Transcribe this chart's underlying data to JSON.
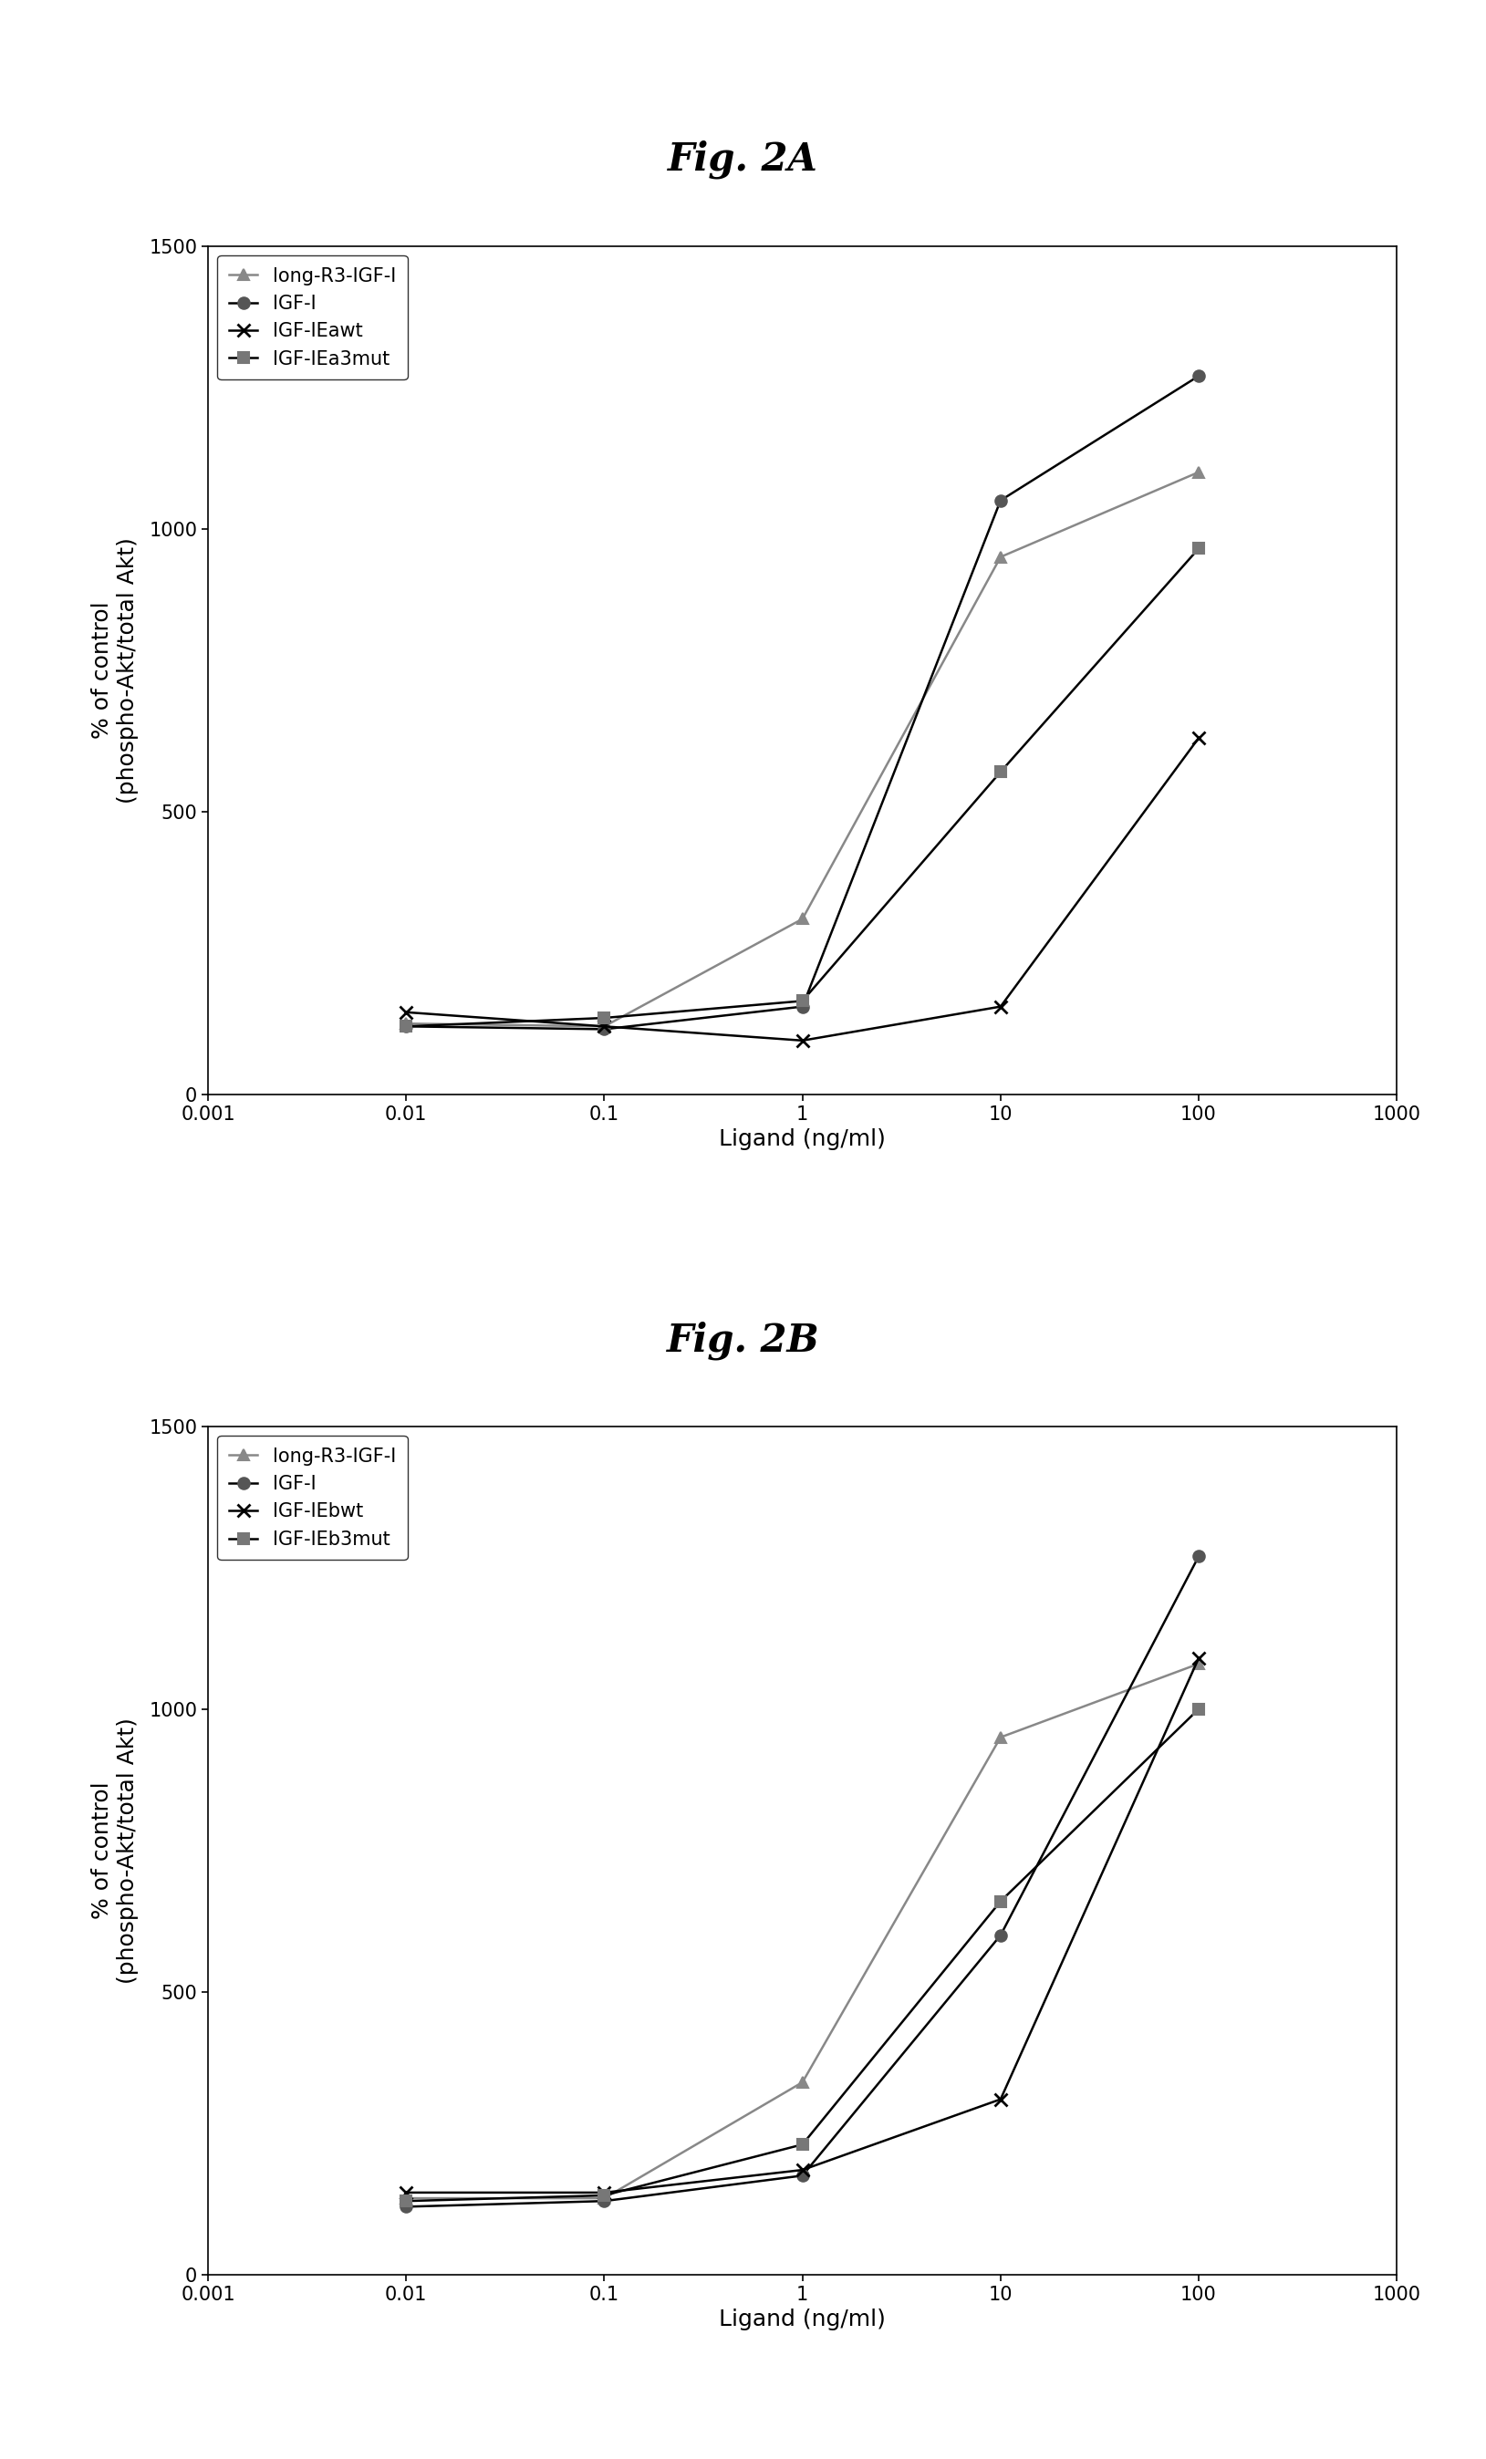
{
  "fig2A": {
    "title": "Fig. 2A",
    "series": [
      {
        "label": "long-R3-IGF-I",
        "x": [
          0.01,
          0.1,
          1,
          10,
          100
        ],
        "y": [
          125,
          120,
          310,
          950,
          1100
        ],
        "marker": "^",
        "color": "#888888",
        "linecolor": "#888888",
        "markersize": 9
      },
      {
        "label": "IGF-I",
        "x": [
          0.01,
          0.1,
          1,
          10,
          100
        ],
        "y": [
          120,
          115,
          155,
          1050,
          1270
        ],
        "marker": "o",
        "color": "#555555",
        "linecolor": "#000000",
        "markersize": 9
      },
      {
        "label": "IGF-IEawt",
        "x": [
          0.01,
          0.1,
          1,
          10,
          100
        ],
        "y": [
          145,
          120,
          95,
          155,
          630
        ],
        "marker": "x",
        "color": "#000000",
        "linecolor": "#000000",
        "markersize": 10
      },
      {
        "label": "IGF-IEa3mut",
        "x": [
          0.01,
          0.1,
          1,
          10,
          100
        ],
        "y": [
          120,
          135,
          165,
          570,
          965
        ],
        "marker": "s",
        "color": "#777777",
        "linecolor": "#000000",
        "markersize": 9
      }
    ],
    "xlabel": "Ligand (ng/ml)",
    "ylabel": "% of control\n(phospho-Akt/total Akt)",
    "ylim": [
      0,
      1500
    ],
    "yticks": [
      0,
      500,
      1000,
      1500
    ],
    "xlim": [
      0.001,
      1000
    ]
  },
  "fig2B": {
    "title": "Fig. 2B",
    "series": [
      {
        "label": "long-R3-IGF-I",
        "x": [
          0.01,
          0.1,
          1,
          10,
          100
        ],
        "y": [
          135,
          135,
          340,
          950,
          1080
        ],
        "marker": "^",
        "color": "#888888",
        "linecolor": "#888888",
        "markersize": 9
      },
      {
        "label": "IGF-I",
        "x": [
          0.01,
          0.1,
          1,
          10,
          100
        ],
        "y": [
          120,
          130,
          175,
          600,
          1270
        ],
        "marker": "o",
        "color": "#555555",
        "linecolor": "#000000",
        "markersize": 9
      },
      {
        "label": "IGF-IEbwt",
        "x": [
          0.01,
          0.1,
          1,
          10,
          100
        ],
        "y": [
          145,
          145,
          185,
          310,
          1090
        ],
        "marker": "x",
        "color": "#000000",
        "linecolor": "#000000",
        "markersize": 10
      },
      {
        "label": "IGF-IEb3mut",
        "x": [
          0.01,
          0.1,
          1,
          10,
          100
        ],
        "y": [
          130,
          140,
          230,
          660,
          1000
        ],
        "marker": "s",
        "color": "#777777",
        "linecolor": "#000000",
        "markersize": 9
      }
    ],
    "xlabel": "Ligand (ng/ml)",
    "ylabel": "% of control\n(phospho-Akt/total Akt)",
    "ylim": [
      0,
      1500
    ],
    "yticks": [
      0,
      500,
      1000,
      1500
    ],
    "xlim": [
      0.001,
      1000
    ]
  },
  "background_color": "#ffffff",
  "title_fontsize": 30,
  "axis_fontsize": 18,
  "tick_fontsize": 15,
  "legend_fontsize": 15
}
